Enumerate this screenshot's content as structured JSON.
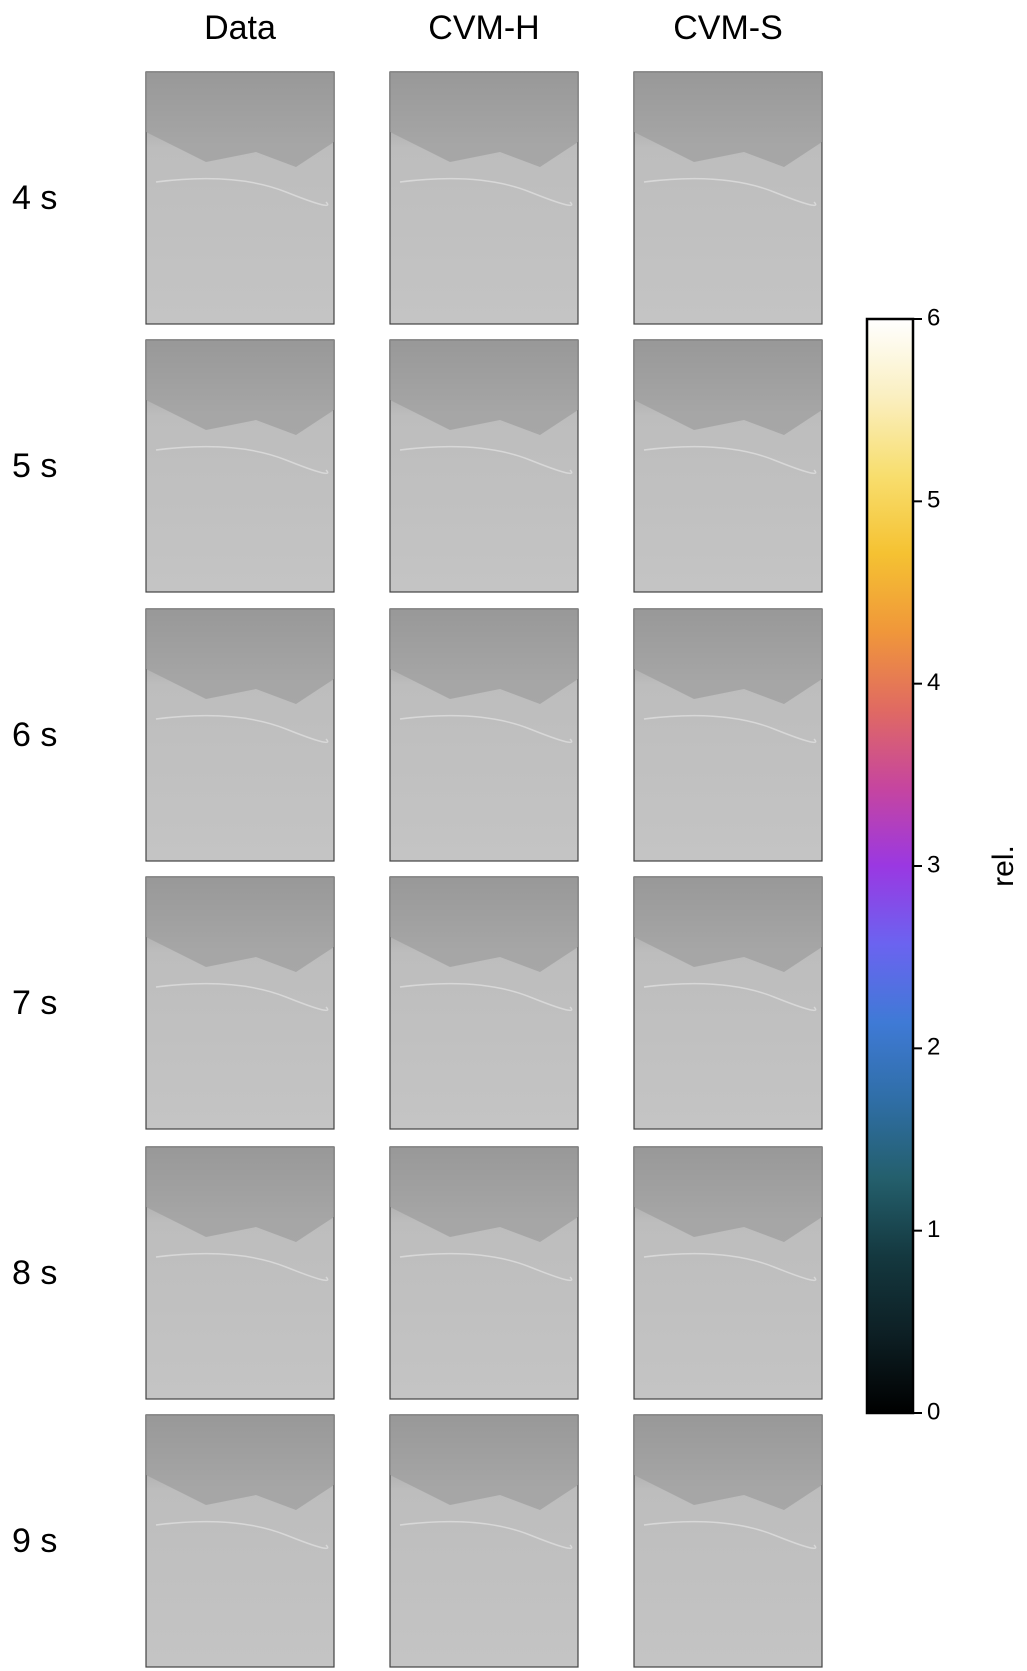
{
  "chart_data": {
    "type": "map-grid",
    "columns": [
      "Data",
      "CVM-H",
      "CVM-S"
    ],
    "rows": [
      "4 s",
      "5 s",
      "6 s",
      "7 s",
      "8 s",
      "9 s"
    ],
    "colorbar": {
      "label": "rel.",
      "lim": [
        0,
        6
      ],
      "ticks": [
        0,
        1,
        2,
        3,
        4,
        5,
        6
      ],
      "colors": [
        "#000000",
        "#0d1f24",
        "#14383f",
        "#245f6c",
        "#2f6ea6",
        "#3f7ad6",
        "#6b63f0",
        "#9a38e2",
        "#c6459f",
        "#e06a62",
        "#f0973a",
        "#f5c232",
        "#f8de6e",
        "#faefc0",
        "#ffffff"
      ]
    }
  }
}
